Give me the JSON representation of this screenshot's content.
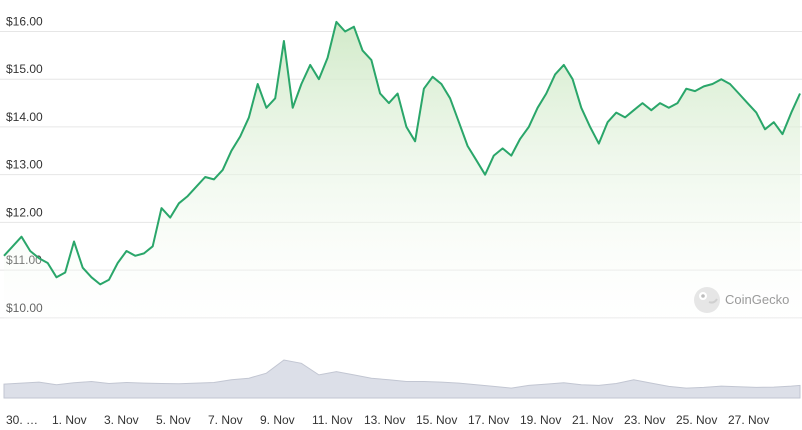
{
  "chart_data": {
    "type": "area",
    "y_axis": {
      "ticks": [
        10,
        11,
        12,
        13,
        14,
        15,
        16
      ],
      "tick_labels": [
        "$10.00",
        "$11.00",
        "$12.00",
        "$13.00",
        "$14.00",
        "$15.00",
        "$16.00"
      ],
      "range": [
        9.85,
        16.45
      ]
    },
    "x_axis": {
      "ticks": [
        0,
        1,
        2,
        3,
        4,
        5,
        6,
        7,
        8,
        9,
        10,
        11,
        12,
        13,
        14,
        15
      ],
      "tick_labels": [
        "30. …",
        "1. Nov",
        "3. Nov",
        "5. Nov",
        "7. Nov",
        "9. Nov",
        "11. Nov",
        "13. Nov",
        "15. Nov",
        "17. Nov",
        "19. Nov",
        "21. Nov",
        "23. Nov",
        "25. Nov",
        "27. Nov",
        ""
      ]
    },
    "series": [
      {
        "type": "line",
        "values": [
          [
            0.0,
            11.3
          ],
          [
            0.25,
            11.5
          ],
          [
            0.5,
            11.7
          ],
          [
            0.75,
            11.4
          ],
          [
            1.0,
            11.25
          ],
          [
            1.25,
            11.15
          ],
          [
            1.5,
            10.85
          ],
          [
            1.75,
            10.95
          ],
          [
            2.0,
            11.6
          ],
          [
            2.25,
            11.05
          ],
          [
            2.5,
            10.85
          ],
          [
            2.75,
            10.7
          ],
          [
            3.0,
            10.8
          ],
          [
            3.25,
            11.15
          ],
          [
            3.5,
            11.4
          ],
          [
            3.75,
            11.3
          ],
          [
            4.0,
            11.35
          ],
          [
            4.25,
            11.5
          ],
          [
            4.5,
            12.3
          ],
          [
            4.75,
            12.1
          ],
          [
            5.0,
            12.4
          ],
          [
            5.25,
            12.55
          ],
          [
            5.5,
            12.75
          ],
          [
            5.75,
            12.95
          ],
          [
            6.0,
            12.9
          ],
          [
            6.25,
            13.1
          ],
          [
            6.5,
            13.5
          ],
          [
            6.75,
            13.8
          ],
          [
            7.0,
            14.2
          ],
          [
            7.25,
            14.9
          ],
          [
            7.5,
            14.4
          ],
          [
            7.75,
            14.6
          ],
          [
            8.0,
            15.8
          ],
          [
            8.25,
            14.4
          ],
          [
            8.5,
            14.9
          ],
          [
            8.75,
            15.3
          ],
          [
            9.0,
            15.0
          ],
          [
            9.25,
            15.45
          ],
          [
            9.5,
            16.2
          ],
          [
            9.75,
            16.0
          ],
          [
            10.0,
            16.1
          ],
          [
            10.25,
            15.6
          ],
          [
            10.5,
            15.4
          ],
          [
            10.75,
            14.7
          ],
          [
            11.0,
            14.5
          ],
          [
            11.25,
            14.7
          ],
          [
            11.5,
            14.0
          ],
          [
            11.75,
            13.7
          ],
          [
            12.0,
            14.8
          ],
          [
            12.25,
            15.05
          ],
          [
            12.5,
            14.9
          ],
          [
            12.75,
            14.6
          ],
          [
            13.0,
            14.1
          ],
          [
            13.25,
            13.6
          ],
          [
            13.5,
            13.3
          ],
          [
            13.75,
            13.0
          ],
          [
            14.0,
            13.4
          ],
          [
            14.25,
            13.55
          ],
          [
            14.5,
            13.4
          ],
          [
            14.75,
            13.75
          ],
          [
            15.0,
            14.0
          ],
          [
            15.25,
            14.4
          ],
          [
            15.5,
            14.7
          ],
          [
            15.75,
            15.1
          ],
          [
            16.0,
            15.3
          ],
          [
            16.25,
            15.0
          ],
          [
            16.5,
            14.4
          ],
          [
            16.75,
            14.0
          ],
          [
            17.0,
            13.65
          ],
          [
            17.25,
            14.1
          ],
          [
            17.5,
            14.3
          ],
          [
            17.75,
            14.2
          ],
          [
            18.0,
            14.35
          ],
          [
            18.25,
            14.5
          ],
          [
            18.5,
            14.35
          ],
          [
            18.75,
            14.5
          ],
          [
            19.0,
            14.4
          ],
          [
            19.25,
            14.5
          ],
          [
            19.5,
            14.8
          ],
          [
            19.75,
            14.75
          ],
          [
            20.0,
            14.85
          ],
          [
            20.25,
            14.9
          ],
          [
            20.5,
            15.0
          ],
          [
            20.75,
            14.9
          ],
          [
            21.0,
            14.7
          ],
          [
            21.25,
            14.5
          ],
          [
            21.5,
            14.3
          ],
          [
            21.75,
            13.95
          ],
          [
            22.0,
            14.1
          ],
          [
            22.25,
            13.85
          ],
          [
            22.5,
            14.3
          ],
          [
            22.75,
            14.7
          ]
        ]
      }
    ],
    "volume": {
      "type": "area",
      "values": [
        [
          0.0,
          0.42
        ],
        [
          0.5,
          0.45
        ],
        [
          1.0,
          0.48
        ],
        [
          1.5,
          0.4
        ],
        [
          2.0,
          0.46
        ],
        [
          2.5,
          0.5
        ],
        [
          3.0,
          0.44
        ],
        [
          3.5,
          0.47
        ],
        [
          4.0,
          0.45
        ],
        [
          4.5,
          0.44
        ],
        [
          5.0,
          0.43
        ],
        [
          5.5,
          0.45
        ],
        [
          6.0,
          0.47
        ],
        [
          6.5,
          0.55
        ],
        [
          7.0,
          0.6
        ],
        [
          7.5,
          0.75
        ],
        [
          8.0,
          1.15
        ],
        [
          8.5,
          1.05
        ],
        [
          9.0,
          0.7
        ],
        [
          9.5,
          0.8
        ],
        [
          10.0,
          0.7
        ],
        [
          10.5,
          0.6
        ],
        [
          11.0,
          0.55
        ],
        [
          11.5,
          0.5
        ],
        [
          12.0,
          0.5
        ],
        [
          12.5,
          0.48
        ],
        [
          13.0,
          0.45
        ],
        [
          13.5,
          0.4
        ],
        [
          14.0,
          0.35
        ],
        [
          14.5,
          0.3
        ],
        [
          15.0,
          0.38
        ],
        [
          15.5,
          0.42
        ],
        [
          16.0,
          0.46
        ],
        [
          16.5,
          0.4
        ],
        [
          17.0,
          0.38
        ],
        [
          17.5,
          0.44
        ],
        [
          18.0,
          0.55
        ],
        [
          18.5,
          0.45
        ],
        [
          19.0,
          0.35
        ],
        [
          19.5,
          0.3
        ],
        [
          20.0,
          0.32
        ],
        [
          20.5,
          0.36
        ],
        [
          21.0,
          0.34
        ],
        [
          21.5,
          0.32
        ],
        [
          22.0,
          0.33
        ],
        [
          22.5,
          0.36
        ],
        [
          22.75,
          0.38
        ]
      ]
    },
    "grid": true,
    "colors": {
      "line": "#2aa66a",
      "fill": "#d8efd0",
      "volume": "#dcdfe8",
      "volume_edge": "#c2c6d2"
    }
  },
  "watermark": {
    "text": "CoinGecko",
    "icon": "coingecko-logo-icon"
  }
}
